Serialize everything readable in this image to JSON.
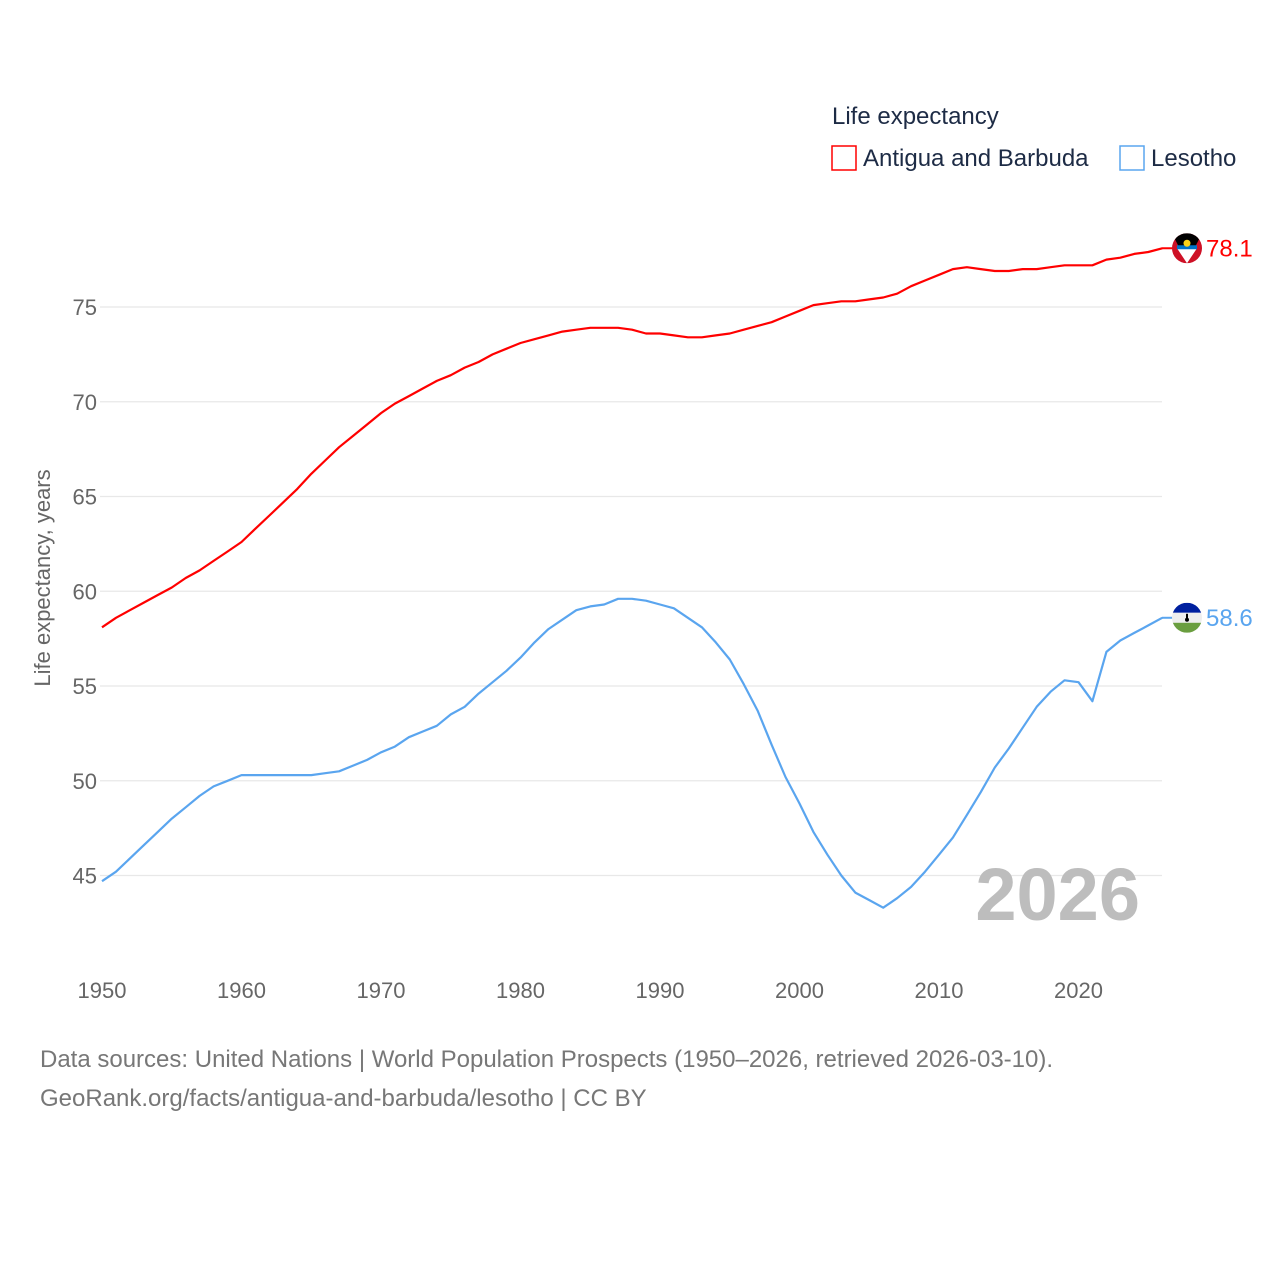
{
  "chart_data": {
    "type": "line",
    "title": "Life expectancy",
    "ylabel": "Life expectancy, years",
    "xlabel": "",
    "xlim": [
      1950,
      2026
    ],
    "ylim": [
      42,
      80
    ],
    "yticks": [
      45,
      50,
      55,
      60,
      65,
      70,
      75
    ],
    "xticks": [
      1950,
      1960,
      1970,
      1980,
      1990,
      2000,
      2010,
      2020
    ],
    "grid": true,
    "legend_position": "top-right",
    "current_year_label": "2026",
    "x": [
      1950,
      1951,
      1952,
      1953,
      1954,
      1955,
      1956,
      1957,
      1958,
      1959,
      1960,
      1961,
      1962,
      1963,
      1964,
      1965,
      1966,
      1967,
      1968,
      1969,
      1970,
      1971,
      1972,
      1973,
      1974,
      1975,
      1976,
      1977,
      1978,
      1979,
      1980,
      1981,
      1982,
      1983,
      1984,
      1985,
      1986,
      1987,
      1988,
      1989,
      1990,
      1991,
      1992,
      1993,
      1994,
      1995,
      1996,
      1997,
      1998,
      1999,
      2000,
      2001,
      2002,
      2003,
      2004,
      2005,
      2006,
      2007,
      2008,
      2009,
      2010,
      2011,
      2012,
      2013,
      2014,
      2015,
      2016,
      2017,
      2018,
      2019,
      2020,
      2021,
      2022,
      2023,
      2024,
      2025,
      2026
    ],
    "series": [
      {
        "name": "Antigua and Barbuda",
        "color": "#ff0000",
        "end_label": "78.1",
        "values": [
          58.1,
          58.6,
          59.0,
          59.4,
          59.8,
          60.2,
          60.7,
          61.1,
          61.6,
          62.1,
          62.6,
          63.3,
          64.0,
          64.7,
          65.4,
          66.2,
          66.9,
          67.6,
          68.2,
          68.8,
          69.4,
          69.9,
          70.3,
          70.7,
          71.1,
          71.4,
          71.8,
          72.1,
          72.5,
          72.8,
          73.1,
          73.3,
          73.5,
          73.7,
          73.8,
          73.9,
          73.9,
          73.9,
          73.8,
          73.6,
          73.6,
          73.5,
          73.4,
          73.4,
          73.5,
          73.6,
          73.8,
          74.0,
          74.2,
          74.5,
          74.8,
          75.1,
          75.2,
          75.3,
          75.3,
          75.4,
          75.5,
          75.7,
          76.1,
          76.4,
          76.7,
          77.0,
          77.1,
          77.0,
          76.9,
          76.9,
          77.0,
          77.0,
          77.1,
          77.2,
          77.2,
          77.2,
          77.5,
          77.6,
          77.8,
          77.9,
          78.1
        ]
      },
      {
        "name": "Lesotho",
        "color": "#5aa5ef",
        "end_label": "58.6",
        "values": [
          44.7,
          45.2,
          45.9,
          46.6,
          47.3,
          48.0,
          48.6,
          49.2,
          49.7,
          50.0,
          50.3,
          50.3,
          50.3,
          50.3,
          50.3,
          50.3,
          50.4,
          50.5,
          50.8,
          51.1,
          51.5,
          51.8,
          52.3,
          52.6,
          52.9,
          53.5,
          53.9,
          54.6,
          55.2,
          55.8,
          56.5,
          57.3,
          58.0,
          58.5,
          59.0,
          59.2,
          59.3,
          59.6,
          59.6,
          59.5,
          59.3,
          59.1,
          58.6,
          58.1,
          57.3,
          56.4,
          55.1,
          53.7,
          51.9,
          50.2,
          48.8,
          47.3,
          46.1,
          45.0,
          44.1,
          43.7,
          43.3,
          43.8,
          44.4,
          45.2,
          46.1,
          47.0,
          48.2,
          49.4,
          50.7,
          51.7,
          52.8,
          53.9,
          54.7,
          55.3,
          55.2,
          54.2,
          56.8,
          57.4,
          57.8,
          58.2,
          58.6
        ]
      }
    ]
  },
  "footer": {
    "line1": "Data sources: United Nations | World Population Prospects (1950–2026, retrieved 2026-03-10).",
    "line2": "GeoRank.org/facts/antigua-and-barbuda/lesotho | CC BY"
  }
}
